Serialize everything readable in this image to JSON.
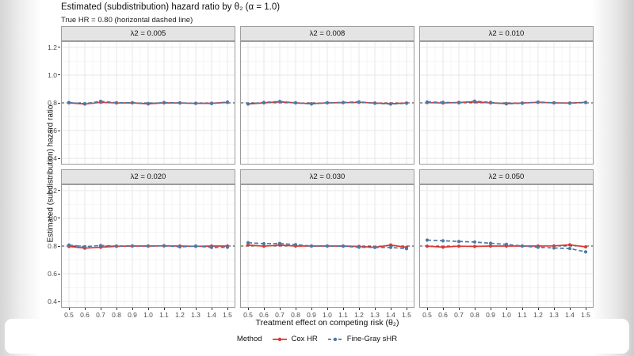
{
  "title": "Estimated (subdistribution) hazard ratio by θ₂ (α = 1.0)",
  "subtitle": "True HR = 0.80 (horizontal dashed line)",
  "axes": {
    "x_label": "Treatment effect on competing risk (θ₂)",
    "y_label": "Estimated (subdistribution) hazard ratio"
  },
  "legend": {
    "title": "Method",
    "position": "bottom",
    "entries": [
      {
        "label": "Cox HR",
        "color": "#d93934",
        "dashed": false
      },
      {
        "label": "Fine-Gray sHR",
        "color": "#4c79a8",
        "dashed": true
      }
    ]
  },
  "colors": {
    "cox": "#d93934",
    "fine_gray": "#4c79a8",
    "reference_line": "#333333",
    "strip_bg": "#e4e4e4",
    "panel_border": "#9b9b9b",
    "grid_major": "#e7e7e7",
    "grid_minor": "#f4f4f4"
  },
  "chart_data": {
    "type": "line",
    "title": "Estimated (subdistribution) hazard ratio by θ₂ (α = 1.0)",
    "subtitle": "True HR = 0.80 (horizontal dashed line)",
    "xlabel": "Treatment effect on competing risk (θ₂)",
    "ylabel": "Estimated (subdistribution) hazard ratio",
    "grid": true,
    "legend_position": "bottom",
    "x": [
      0.5,
      0.6,
      0.7,
      0.8,
      0.9,
      1.0,
      1.1,
      1.2,
      1.3,
      1.4,
      1.5
    ],
    "x_ticks": [
      "0.5",
      "0.6",
      "0.7",
      "0.8",
      "0.9",
      "1.0",
      "1.1",
      "1.2",
      "1.3",
      "1.4",
      "1.5"
    ],
    "y_ticks": [
      1.2,
      1.0,
      0.8,
      0.6,
      0.4
    ],
    "y_minor": [
      0.5,
      0.7,
      0.9,
      1.1
    ],
    "xlim": [
      0.45,
      1.55
    ],
    "ylim": [
      0.355,
      1.245
    ],
    "reference_line": 0.8,
    "facets": [
      {
        "label": "λ2 = 0.005",
        "series": [
          {
            "name": "Cox HR",
            "values": [
              0.8,
              0.791,
              0.804,
              0.799,
              0.8,
              0.793,
              0.8,
              0.799,
              0.796,
              0.797,
              0.803
            ]
          },
          {
            "name": "Fine-Gray sHR",
            "values": [
              0.802,
              0.794,
              0.811,
              0.801,
              0.801,
              0.795,
              0.802,
              0.8,
              0.797,
              0.795,
              0.806
            ]
          }
        ]
      },
      {
        "label": "λ2 = 0.008",
        "series": [
          {
            "name": "Cox HR",
            "values": [
              0.791,
              0.8,
              0.807,
              0.8,
              0.794,
              0.8,
              0.801,
              0.804,
              0.799,
              0.794,
              0.799
            ]
          },
          {
            "name": "Fine-Gray sHR",
            "values": [
              0.793,
              0.803,
              0.81,
              0.8,
              0.792,
              0.801,
              0.803,
              0.807,
              0.797,
              0.791,
              0.797
            ]
          }
        ]
      },
      {
        "label": "λ2 = 0.010",
        "series": [
          {
            "name": "Cox HR",
            "values": [
              0.802,
              0.799,
              0.803,
              0.807,
              0.8,
              0.795,
              0.799,
              0.804,
              0.8,
              0.799,
              0.804
            ]
          },
          {
            "name": "Fine-Gray sHR",
            "values": [
              0.806,
              0.804,
              0.8,
              0.812,
              0.803,
              0.793,
              0.797,
              0.806,
              0.8,
              0.797,
              0.802
            ]
          }
        ]
      },
      {
        "label": "λ2 = 0.020",
        "series": [
          {
            "name": "Cox HR",
            "values": [
              0.797,
              0.785,
              0.791,
              0.798,
              0.8,
              0.8,
              0.801,
              0.8,
              0.798,
              0.8,
              0.8
            ]
          },
          {
            "name": "Fine-Gray sHR",
            "values": [
              0.807,
              0.795,
              0.804,
              0.8,
              0.801,
              0.8,
              0.802,
              0.794,
              0.8,
              0.79,
              0.791
            ]
          }
        ]
      },
      {
        "label": "λ2 = 0.030",
        "series": [
          {
            "name": "Cox HR",
            "values": [
              0.807,
              0.799,
              0.807,
              0.8,
              0.8,
              0.8,
              0.8,
              0.797,
              0.791,
              0.807,
              0.79
            ]
          },
          {
            "name": "Fine-Gray sHR",
            "values": [
              0.824,
              0.817,
              0.819,
              0.81,
              0.8,
              0.8,
              0.799,
              0.791,
              0.79,
              0.79,
              0.781
            ]
          }
        ]
      },
      {
        "label": "λ2 = 0.050",
        "series": [
          {
            "name": "Cox HR",
            "values": [
              0.799,
              0.792,
              0.799,
              0.797,
              0.8,
              0.8,
              0.8,
              0.8,
              0.801,
              0.809,
              0.794
            ]
          },
          {
            "name": "Fine-Gray sHR",
            "values": [
              0.843,
              0.838,
              0.833,
              0.829,
              0.82,
              0.812,
              0.8,
              0.791,
              0.786,
              0.782,
              0.758
            ]
          }
        ]
      }
    ]
  }
}
